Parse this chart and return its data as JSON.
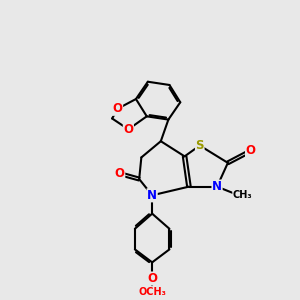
{
  "bg_color": "#e8e8e8",
  "atom_colors": {
    "S": "#999900",
    "N": "#0000ff",
    "O": "#ff0000",
    "C": "#000000"
  },
  "bond_lw": 1.5,
  "font_size": 8.5
}
